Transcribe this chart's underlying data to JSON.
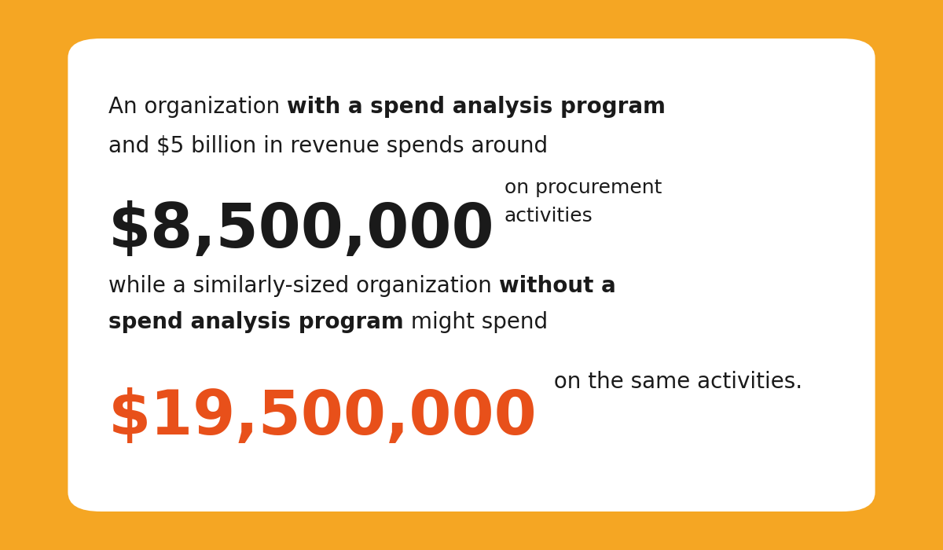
{
  "bg_color": "#F5A623",
  "card_color": "#FFFFFF",
  "text_color_black": "#1a1a1a",
  "text_color_orange": "#E8501A",
  "line1_normal": "An organization ",
  "line1_bold": "with a spend analysis program",
  "line2": "and $5 billion in revenue spends around",
  "amount1": "$8,500,000",
  "amount1_side_1": "on procurement",
  "amount1_side_2": "activities",
  "line3_normal": "while a similarly-sized organization ",
  "line3_bold": "without a",
  "line4_bold": "spend analysis program",
  "line4_normal": " might spend",
  "amount2": "$19,500,000",
  "amount2_side": " on the same activities.",
  "body_fontsize": 20,
  "amount1_fontsize": 56,
  "amount2_fontsize": 56
}
